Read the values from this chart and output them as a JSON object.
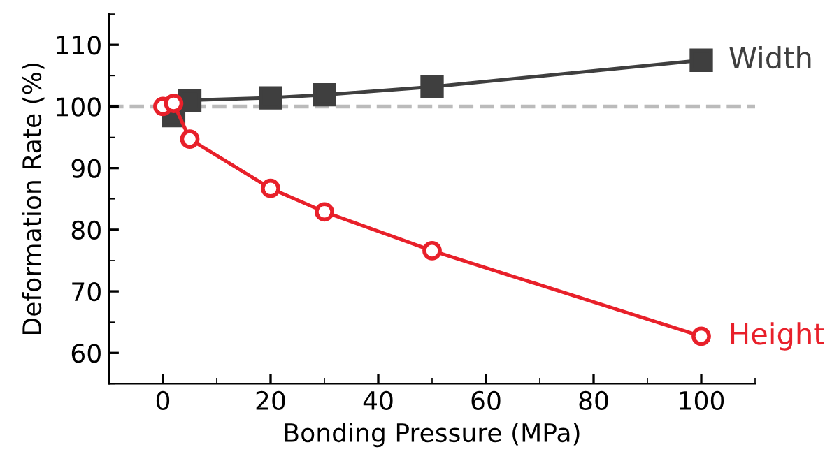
{
  "chart_data": {
    "type": "line",
    "xlabel": "Bonding Pressure (MPa)",
    "ylabel": "Deformation Rate (%)",
    "series": [
      {
        "name": "Width",
        "color": "#3f3f3f",
        "marker": "square",
        "x": [
          2,
          5,
          20,
          30,
          50,
          100
        ],
        "values": [
          98.5,
          101,
          101.4,
          101.9,
          103.2,
          107.5
        ]
      },
      {
        "name": "Height",
        "color": "#e8202a",
        "marker": "circle",
        "x": [
          0,
          2,
          5,
          20,
          30,
          50,
          100
        ],
        "values": [
          100,
          100.5,
          94.7,
          86.7,
          82.9,
          76.6,
          62.7
        ]
      }
    ],
    "xlim": [
      -10,
      110
    ],
    "xticks": [
      0,
      20,
      40,
      60,
      80,
      100
    ],
    "ylim": [
      55,
      115
    ],
    "yticks": [
      60,
      70,
      80,
      90,
      100,
      110
    ],
    "ref_lines": [
      {
        "axis": "y",
        "value": 100,
        "color": "#bbbbbb",
        "line_style": "dashed"
      }
    ],
    "grid": false,
    "legend": false,
    "line_style": "solid"
  }
}
